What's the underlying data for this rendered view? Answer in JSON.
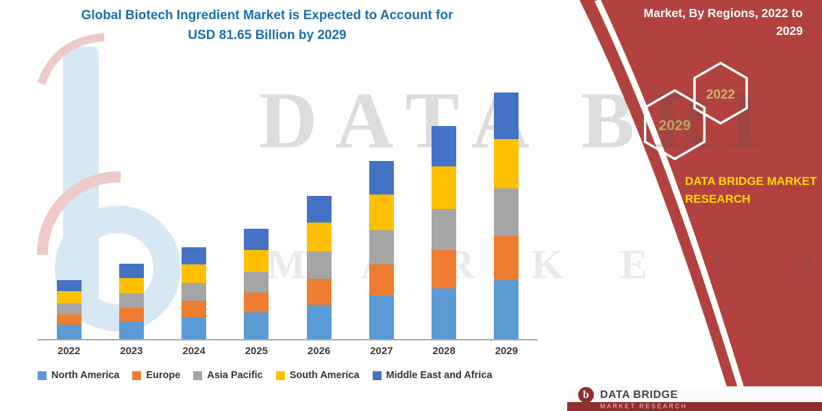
{
  "title": {
    "line1": "Global Biotech Ingredient Market is Expected to Account for",
    "line2": "USD 81.65 Billion by 2029"
  },
  "banner": {
    "heading_line1": "Market, By Regions, 2022 to",
    "heading_line2": "2029",
    "hex_front_label": "2029",
    "hex_back_label": "2022",
    "brand_line1": "DATA BRIDGE MARKET",
    "brand_line2": "RESEARCH"
  },
  "watermark": {
    "line1": "DATA BRI",
    "line2": "M A R K E T  R E"
  },
  "footer": {
    "logo_letter": "b",
    "brand_line1": "DATA BRIDGE",
    "brand_line2": "MARKET RESEARCH"
  },
  "colors": {
    "banner_red": "#b2423f",
    "footer_maroon": "#8e2f2d",
    "title_blue": "#1a6fb0",
    "brand_yellow": "#ffd60a",
    "hex_label_olive": "#b9a75a"
  },
  "chart_data": {
    "type": "bar",
    "stacked": true,
    "title": "Global Biotech Ingredient Market is Expected to Account for USD 81.65 Billion by 2029",
    "unit": "USD Billion",
    "xlabel": "",
    "ylabel": "",
    "ylim": [
      0,
      85
    ],
    "grid": false,
    "legend_position": "bottom",
    "categories": [
      "2022",
      "2023",
      "2024",
      "2025",
      "2026",
      "2027",
      "2028",
      "2029"
    ],
    "series": [
      {
        "name": "North America",
        "color": "#5b9bd5",
        "values": [
          4.7,
          6.0,
          7.3,
          8.8,
          11.4,
          14.2,
          16.9,
          19.6
        ]
      },
      {
        "name": "Europe",
        "color": "#ed7d31",
        "values": [
          3.5,
          4.5,
          5.5,
          6.6,
          8.6,
          10.6,
          12.7,
          14.7
        ]
      },
      {
        "name": "Asia Pacific",
        "color": "#a5a5a5",
        "values": [
          3.7,
          4.8,
          5.8,
          6.9,
          9.0,
          11.2,
          13.4,
          15.6
        ]
      },
      {
        "name": "South America",
        "color": "#ffc000",
        "values": [
          3.9,
          5.0,
          6.1,
          7.3,
          9.5,
          11.8,
          14.1,
          16.3
        ]
      },
      {
        "name": "Middle East and Africa",
        "color": "#4472c4",
        "values": [
          3.7,
          4.7,
          5.8,
          6.9,
          9.0,
          11.2,
          13.4,
          15.45
        ]
      }
    ],
    "totals": [
      19.5,
      25.0,
      30.5,
      36.5,
      47.5,
      59.0,
      70.5,
      81.65
    ]
  }
}
